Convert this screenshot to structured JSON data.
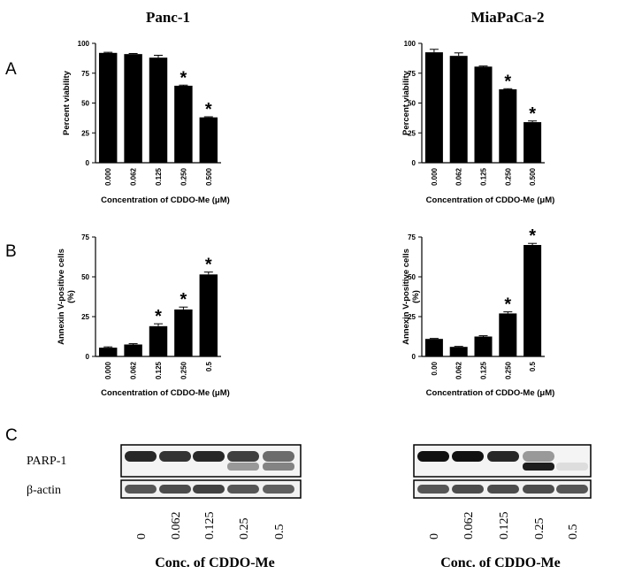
{
  "figure": {
    "panel_labels": [
      "A",
      "B",
      "C"
    ],
    "cell_lines": [
      "Panc-1",
      "MiaPaCa-2"
    ]
  },
  "chart_data": [
    {
      "type": "bar",
      "panel": "A",
      "title": "Panc-1",
      "categories": [
        "0.000",
        "0.062",
        "0.125",
        "0.250",
        "0.500"
      ],
      "values": [
        92,
        91,
        88,
        64.5,
        38
      ],
      "errors": [
        0.5,
        0.5,
        2,
        0.5,
        0.5
      ],
      "significant": [
        false,
        false,
        false,
        true,
        true
      ],
      "marker": "*",
      "ylabel": "Percent viability",
      "xlabel": "Concentration of CDDO-Me (μM)",
      "ylim": [
        0,
        100
      ],
      "yticks": [
        "0",
        "25",
        "50",
        "75",
        "100"
      ],
      "grid": false
    },
    {
      "type": "bar",
      "panel": "A",
      "title": "MiaPaCa-2",
      "categories": [
        "0.000",
        "0.062",
        "0.125",
        "0.250",
        "0.500"
      ],
      "values": [
        92.5,
        89.5,
        80.5,
        61.5,
        34
      ],
      "errors": [
        2.5,
        2.5,
        0.5,
        0.5,
        1
      ],
      "significant": [
        false,
        false,
        false,
        true,
        true
      ],
      "marker": "*",
      "ylabel": "Percent viability",
      "xlabel": "Concentration of CDDO-Me (μM)",
      "ylim": [
        0,
        100
      ],
      "yticks": [
        "0",
        "25",
        "50",
        "75",
        "100"
      ],
      "grid": false
    },
    {
      "type": "bar",
      "panel": "B",
      "title": "",
      "categories": [
        "0.000",
        "0.062",
        "0.125",
        "0.250",
        "0.5"
      ],
      "values": [
        5.5,
        7.5,
        19,
        29.5,
        51.5
      ],
      "errors": [
        0.5,
        0.5,
        1.5,
        1.5,
        1.5
      ],
      "significant": [
        false,
        false,
        true,
        true,
        true
      ],
      "marker": "*",
      "ylabel": "Annexin V-positive cells (%)",
      "xlabel": "Concentration of CDDO-Me (μM)",
      "ylim": [
        0,
        75
      ],
      "yticks": [
        "0",
        "25",
        "50",
        "75"
      ],
      "grid": false
    },
    {
      "type": "bar",
      "panel": "B",
      "title": "",
      "categories": [
        "0.00",
        "0.062",
        "0.125",
        "0.250",
        "0.5"
      ],
      "values": [
        11,
        6,
        12.5,
        27,
        70
      ],
      "errors": [
        0.3,
        0.3,
        0.5,
        1,
        1
      ],
      "significant": [
        false,
        false,
        false,
        true,
        true
      ],
      "marker": "*",
      "ylabel": "Annexin V-positive cells (%)",
      "xlabel": "Concentration of CDDO-Me (μM)",
      "ylim": [
        0,
        75
      ],
      "yticks": [
        "0",
        "25",
        "50",
        "75"
      ],
      "grid": false
    }
  ],
  "blots": {
    "row_labels": [
      "PARP-1",
      "β-actin"
    ],
    "lanes": [
      "0",
      "0.062",
      "0.125",
      "0.25",
      "0.5"
    ],
    "xlabel": "Conc. of CDDO-Me",
    "panels": [
      {
        "cell_line": "Panc-1",
        "parp_upper": [
          0.9,
          0.85,
          0.9,
          0.8,
          0.6
        ],
        "parp_cleaved": [
          0,
          0,
          0,
          0.4,
          0.5
        ],
        "actin": [
          0.75,
          0.8,
          0.85,
          0.75,
          0.7
        ]
      },
      {
        "cell_line": "MiaPaCa-2",
        "parp_upper": [
          1.0,
          1.0,
          0.9,
          0.4,
          0
        ],
        "parp_cleaved": [
          0,
          0,
          0,
          0.95,
          0.1
        ],
        "actin": [
          0.75,
          0.8,
          0.8,
          0.8,
          0.75
        ]
      }
    ]
  }
}
